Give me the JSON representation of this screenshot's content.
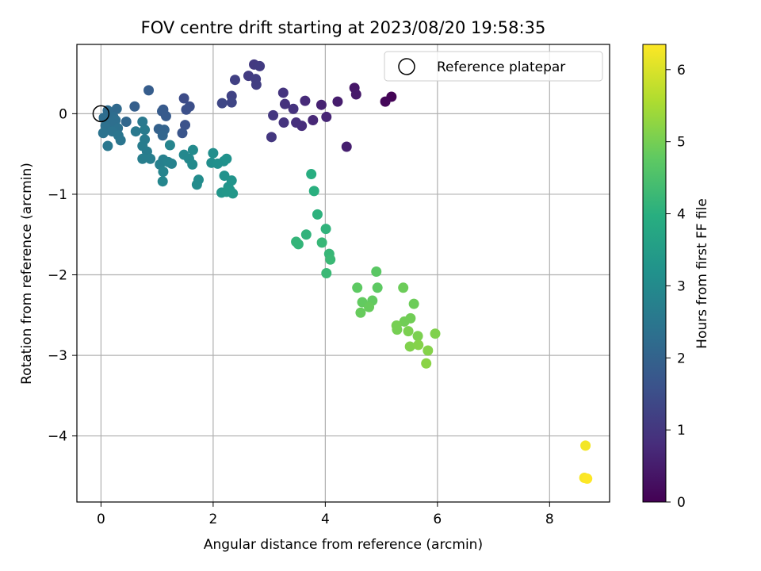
{
  "chart_data": {
    "type": "scatter",
    "title": "FOV centre drift starting at 2023/08/20 19:58:35",
    "xlabel": "Angular distance from reference (arcmin)",
    "ylabel": "Rotation from reference (arcmin)",
    "xlim": [
      -0.43,
      9.07
    ],
    "ylim": [
      -4.82,
      0.86
    ],
    "xticks": [
      0,
      2,
      4,
      6,
      8
    ],
    "yticks": [
      0,
      -1,
      -2,
      -3,
      -4
    ],
    "grid": true,
    "legend": {
      "placement": "top-right",
      "label": "Reference platepar",
      "marker": "hollow-circle"
    },
    "reference_point": {
      "x": 0,
      "y": 0
    },
    "colorbar": {
      "label": "Hours from first FF file",
      "range": [
        0,
        6.35
      ],
      "ticks": [
        0,
        1,
        2,
        3,
        4,
        5,
        6
      ],
      "colormap": [
        "#440154",
        "#472d7b",
        "#3b528b",
        "#2c728e",
        "#21918c",
        "#28ae80",
        "#5ec962",
        "#addc30",
        "#fde725"
      ]
    },
    "points": [
      {
        "x": 5.18,
        "y": 0.21,
        "c": 0.05
      },
      {
        "x": 5.07,
        "y": 0.15,
        "c": 0.1
      },
      {
        "x": 4.52,
        "y": 0.32,
        "c": 0.4
      },
      {
        "x": 4.55,
        "y": 0.24,
        "c": 0.45
      },
      {
        "x": 4.22,
        "y": 0.15,
        "c": 0.5
      },
      {
        "x": 4.38,
        "y": -0.41,
        "c": 0.55
      },
      {
        "x": 3.93,
        "y": 0.11,
        "c": 0.6
      },
      {
        "x": 4.02,
        "y": -0.04,
        "c": 0.65
      },
      {
        "x": 3.78,
        "y": -0.08,
        "c": 0.7
      },
      {
        "x": 3.64,
        "y": 0.16,
        "c": 0.75
      },
      {
        "x": 3.58,
        "y": -0.15,
        "c": 0.8
      },
      {
        "x": 3.48,
        "y": -0.11,
        "c": 0.85
      },
      {
        "x": 3.43,
        "y": 0.06,
        "c": 0.9
      },
      {
        "x": 3.28,
        "y": 0.12,
        "c": 0.9
      },
      {
        "x": 3.26,
        "y": -0.11,
        "c": 0.95
      },
      {
        "x": 3.25,
        "y": 0.26,
        "c": 0.95
      },
      {
        "x": 3.07,
        "y": -0.02,
        "c": 1.0
      },
      {
        "x": 3.04,
        "y": -0.29,
        "c": 1.0
      },
      {
        "x": 2.73,
        "y": 0.61,
        "c": 1.05
      },
      {
        "x": 2.83,
        "y": 0.59,
        "c": 1.1
      },
      {
        "x": 2.63,
        "y": 0.47,
        "c": 1.1
      },
      {
        "x": 2.76,
        "y": 0.43,
        "c": 1.15
      },
      {
        "x": 2.77,
        "y": 0.36,
        "c": 1.15
      },
      {
        "x": 2.39,
        "y": 0.42,
        "c": 1.2
      },
      {
        "x": 2.33,
        "y": 0.22,
        "c": 1.25
      },
      {
        "x": 2.33,
        "y": 0.14,
        "c": 1.3
      },
      {
        "x": 2.16,
        "y": 0.13,
        "c": 1.35
      },
      {
        "x": 1.48,
        "y": 0.19,
        "c": 1.45
      },
      {
        "x": 1.58,
        "y": 0.09,
        "c": 1.5
      },
      {
        "x": 1.52,
        "y": 0.05,
        "c": 1.55
      },
      {
        "x": 1.5,
        "y": -0.14,
        "c": 1.6
      },
      {
        "x": 1.45,
        "y": -0.24,
        "c": 1.65
      },
      {
        "x": 1.11,
        "y": 0.05,
        "c": 1.75
      },
      {
        "x": 1.09,
        "y": 0.03,
        "c": 1.8
      },
      {
        "x": 1.16,
        "y": -0.03,
        "c": 1.8
      },
      {
        "x": 0.85,
        "y": 0.29,
        "c": 1.85
      },
      {
        "x": 0.6,
        "y": 0.09,
        "c": 1.9
      },
      {
        "x": 1.03,
        "y": -0.19,
        "c": 1.95
      },
      {
        "x": 1.13,
        "y": -0.2,
        "c": 2.0
      },
      {
        "x": 1.1,
        "y": -0.27,
        "c": 2.05
      },
      {
        "x": 0.45,
        "y": -0.1,
        "c": 2.1
      },
      {
        "x": 0.28,
        "y": 0.06,
        "c": 2.15
      },
      {
        "x": 0.12,
        "y": 0.04,
        "c": 2.2
      },
      {
        "x": 0.14,
        "y": 0.0,
        "c": 2.2
      },
      {
        "x": 0.22,
        "y": -0.04,
        "c": 2.25
      },
      {
        "x": 0.05,
        "y": -0.05,
        "c": 2.25
      },
      {
        "x": 0.26,
        "y": -0.08,
        "c": 2.3
      },
      {
        "x": 0.18,
        "y": -0.12,
        "c": 2.3
      },
      {
        "x": 0.08,
        "y": -0.15,
        "c": 2.35
      },
      {
        "x": 0.3,
        "y": -0.18,
        "c": 2.35
      },
      {
        "x": 0.2,
        "y": -0.22,
        "c": 2.4
      },
      {
        "x": 0.04,
        "y": -0.24,
        "c": 2.4
      },
      {
        "x": 0.31,
        "y": -0.27,
        "c": 2.45
      },
      {
        "x": 0.35,
        "y": -0.33,
        "c": 2.45
      },
      {
        "x": 0.12,
        "y": -0.4,
        "c": 2.5
      },
      {
        "x": 0.62,
        "y": -0.22,
        "c": 2.55
      },
      {
        "x": 0.74,
        "y": -0.1,
        "c": 2.55
      },
      {
        "x": 0.78,
        "y": -0.2,
        "c": 2.6
      },
      {
        "x": 0.78,
        "y": -0.32,
        "c": 2.6
      },
      {
        "x": 0.74,
        "y": -0.4,
        "c": 2.65
      },
      {
        "x": 0.82,
        "y": -0.47,
        "c": 2.65
      },
      {
        "x": 0.88,
        "y": -0.56,
        "c": 2.7
      },
      {
        "x": 0.74,
        "y": -0.56,
        "c": 2.7
      },
      {
        "x": 1.05,
        "y": -0.63,
        "c": 2.75
      },
      {
        "x": 1.11,
        "y": -0.57,
        "c": 2.75
      },
      {
        "x": 1.2,
        "y": -0.6,
        "c": 2.8
      },
      {
        "x": 1.26,
        "y": -0.62,
        "c": 2.8
      },
      {
        "x": 1.23,
        "y": -0.39,
        "c": 2.85
      },
      {
        "x": 1.11,
        "y": -0.72,
        "c": 2.85
      },
      {
        "x": 1.1,
        "y": -0.84,
        "c": 2.9
      },
      {
        "x": 1.48,
        "y": -0.51,
        "c": 2.95
      },
      {
        "x": 1.57,
        "y": -0.56,
        "c": 2.95
      },
      {
        "x": 1.64,
        "y": -0.45,
        "c": 3.0
      },
      {
        "x": 1.63,
        "y": -0.63,
        "c": 3.0
      },
      {
        "x": 1.74,
        "y": -0.82,
        "c": 3.05
      },
      {
        "x": 1.71,
        "y": -0.88,
        "c": 3.05
      },
      {
        "x": 2.0,
        "y": -0.49,
        "c": 3.1
      },
      {
        "x": 1.97,
        "y": -0.61,
        "c": 3.1
      },
      {
        "x": 2.08,
        "y": -0.62,
        "c": 3.15
      },
      {
        "x": 2.19,
        "y": -0.59,
        "c": 3.15
      },
      {
        "x": 2.24,
        "y": -0.56,
        "c": 3.2
      },
      {
        "x": 2.2,
        "y": -0.77,
        "c": 3.2
      },
      {
        "x": 2.33,
        "y": -0.83,
        "c": 3.25
      },
      {
        "x": 2.27,
        "y": -0.91,
        "c": 3.25
      },
      {
        "x": 2.3,
        "y": -0.95,
        "c": 3.3
      },
      {
        "x": 2.15,
        "y": -0.98,
        "c": 3.3
      },
      {
        "x": 2.24,
        "y": -0.97,
        "c": 3.35
      },
      {
        "x": 2.35,
        "y": -0.99,
        "c": 3.35
      },
      {
        "x": 3.75,
        "y": -0.75,
        "c": 3.95
      },
      {
        "x": 3.8,
        "y": -0.96,
        "c": 4.0
      },
      {
        "x": 3.86,
        "y": -1.25,
        "c": 4.05
      },
      {
        "x": 4.01,
        "y": -1.43,
        "c": 4.1
      },
      {
        "x": 3.66,
        "y": -1.5,
        "c": 4.1
      },
      {
        "x": 3.48,
        "y": -1.59,
        "c": 4.15
      },
      {
        "x": 3.52,
        "y": -1.62,
        "c": 4.15
      },
      {
        "x": 3.94,
        "y": -1.6,
        "c": 4.2
      },
      {
        "x": 4.07,
        "y": -1.74,
        "c": 4.2
      },
      {
        "x": 4.09,
        "y": -1.81,
        "c": 4.25
      },
      {
        "x": 4.02,
        "y": -1.98,
        "c": 4.25
      },
      {
        "x": 4.91,
        "y": -1.96,
        "c": 4.7
      },
      {
        "x": 4.93,
        "y": -2.16,
        "c": 4.75
      },
      {
        "x": 4.57,
        "y": -2.16,
        "c": 4.75
      },
      {
        "x": 4.66,
        "y": -2.34,
        "c": 4.8
      },
      {
        "x": 4.84,
        "y": -2.32,
        "c": 4.8
      },
      {
        "x": 4.78,
        "y": -2.4,
        "c": 4.85
      },
      {
        "x": 4.63,
        "y": -2.47,
        "c": 4.85
      },
      {
        "x": 5.39,
        "y": -2.16,
        "c": 4.9
      },
      {
        "x": 5.58,
        "y": -2.36,
        "c": 4.9
      },
      {
        "x": 5.52,
        "y": -2.54,
        "c": 4.95
      },
      {
        "x": 5.41,
        "y": -2.58,
        "c": 4.95
      },
      {
        "x": 5.27,
        "y": -2.63,
        "c": 5.0
      },
      {
        "x": 5.28,
        "y": -2.68,
        "c": 5.0
      },
      {
        "x": 5.48,
        "y": -2.7,
        "c": 5.05
      },
      {
        "x": 5.65,
        "y": -2.76,
        "c": 5.05
      },
      {
        "x": 5.96,
        "y": -2.73,
        "c": 5.1
      },
      {
        "x": 5.51,
        "y": -2.89,
        "c": 5.1
      },
      {
        "x": 5.66,
        "y": -2.87,
        "c": 5.15
      },
      {
        "x": 5.83,
        "y": -2.94,
        "c": 5.15
      },
      {
        "x": 5.8,
        "y": -3.1,
        "c": 5.2
      },
      {
        "x": 8.64,
        "y": -4.12,
        "c": 6.25
      },
      {
        "x": 8.62,
        "y": -4.52,
        "c": 6.3
      },
      {
        "x": 8.67,
        "y": -4.53,
        "c": 6.35
      }
    ]
  }
}
